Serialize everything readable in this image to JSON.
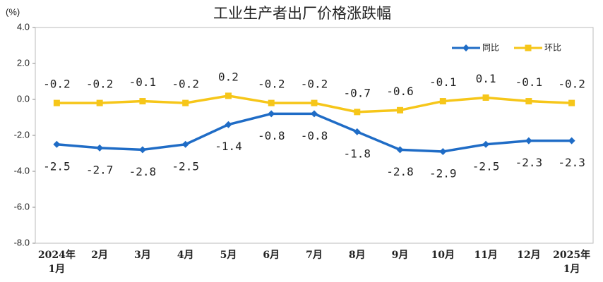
{
  "chart_data": {
    "type": "line",
    "title": "工业生产者出厂价格涨跌幅",
    "y_label": "(%)",
    "categories": [
      "2024年\n1月",
      "2月",
      "3月",
      "4月",
      "5月",
      "6月",
      "7月",
      "8月",
      "9月",
      "10月",
      "11月",
      "12月",
      "2025年\n1月"
    ],
    "series": [
      {
        "name": "同比",
        "color": "#1f6cc6",
        "marker": "diamond",
        "label_side": "below",
        "values": [
          -2.5,
          -2.7,
          -2.8,
          -2.5,
          -1.4,
          -0.8,
          -0.8,
          -1.8,
          -2.8,
          -2.9,
          -2.5,
          -2.3,
          -2.3
        ]
      },
      {
        "name": "环比",
        "color": "#f6c619",
        "marker": "square",
        "label_side": "above",
        "values": [
          -0.2,
          -0.2,
          -0.1,
          -0.2,
          0.2,
          -0.2,
          -0.2,
          -0.7,
          -0.6,
          -0.1,
          0.1,
          -0.1,
          -0.2
        ]
      }
    ],
    "ylim": [
      -8,
      4
    ],
    "yticks": [
      {
        "value": 4,
        "label": "4.0"
      },
      {
        "value": 2,
        "label": "2.0"
      },
      {
        "value": 0,
        "label": "0.0"
      },
      {
        "value": -2,
        "label": "-2.0"
      },
      {
        "value": -4,
        "label": "-4.0"
      },
      {
        "value": -6,
        "label": "-6.0"
      },
      {
        "value": -8,
        "label": "-8.0"
      }
    ],
    "grid": false,
    "legend": "top-right"
  }
}
